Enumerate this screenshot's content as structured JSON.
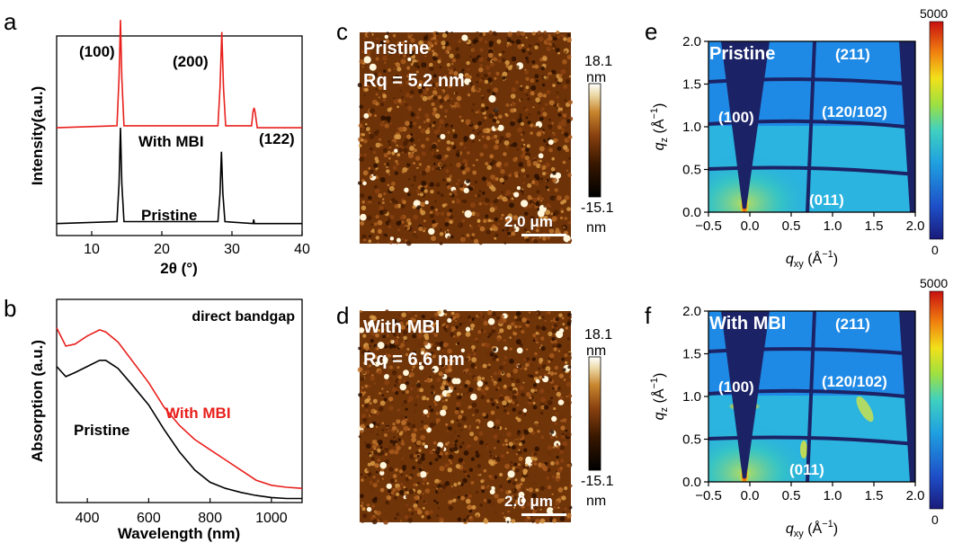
{
  "panels": {
    "a": {
      "label": "a"
    },
    "b": {
      "label": "b"
    },
    "c": {
      "label": "c"
    },
    "d": {
      "label": "d"
    },
    "e": {
      "label": "e"
    },
    "f": {
      "label": "f"
    }
  },
  "colors": {
    "with_mbi": "#e8201c",
    "pristine": "#000000",
    "afm": [
      "#1a0a00",
      "#5a2300",
      "#8b4210",
      "#c0742c",
      "#e6b45c",
      "#ffffff"
    ],
    "giwaxs": [
      "#1a1a7a",
      "#1e4fc8",
      "#1fa0e0",
      "#40d0c0",
      "#9ee040",
      "#f2e01a",
      "#f08010",
      "#c81010"
    ]
  },
  "chart_data": [
    {
      "panel": "a",
      "type": "line",
      "xlabel": "2θ (°)",
      "ylabel": "Intensity(a.u.)",
      "xlim": [
        5,
        40
      ],
      "xticks": [
        "10",
        "20",
        "30",
        "40"
      ],
      "xtick_values": [
        10,
        20,
        30,
        40
      ],
      "series": [
        {
          "name": "With MBI",
          "color": "#e8201c",
          "offset": 0.54,
          "x": [
            5,
            13.6,
            13.9,
            14.1,
            14.3,
            14.6,
            28.0,
            28.3,
            28.55,
            28.8,
            29.1,
            32.8,
            33.0,
            33.15,
            33.3,
            33.6,
            40
          ],
          "y": [
            0.0,
            0.01,
            0.25,
            0.54,
            0.25,
            0.01,
            0.01,
            0.2,
            0.48,
            0.2,
            0.01,
            0.01,
            0.08,
            0.1,
            0.08,
            0.0,
            0.0
          ]
        },
        {
          "name": "Pristine",
          "color": "#000000",
          "offset": 0.06,
          "x": [
            5,
            13.6,
            13.9,
            14.1,
            14.3,
            14.6,
            28.0,
            28.3,
            28.5,
            28.7,
            29.0,
            33.0,
            33.1,
            33.2,
            40
          ],
          "y": [
            0.0,
            0.01,
            0.2,
            0.48,
            0.2,
            0.01,
            0.01,
            0.15,
            0.36,
            0.15,
            0.01,
            0.0,
            0.02,
            0.0,
            0.0
          ]
        }
      ],
      "annotations": [
        "(100)",
        "(200)",
        "(122)",
        "With MBI",
        "Pristine"
      ]
    },
    {
      "panel": "b",
      "type": "line",
      "xlabel": "Wavelength (nm)",
      "ylabel": "Absorption (a.u.)",
      "xlim": [
        300,
        1100
      ],
      "xticks": [
        "400",
        "600",
        "800",
        "1000"
      ],
      "xtick_values": [
        400,
        600,
        800,
        1000
      ],
      "note": "direct bandgap",
      "series": [
        {
          "name": "With MBI",
          "color": "#e8201c",
          "x": [
            300,
            330,
            360,
            400,
            440,
            460,
            500,
            540,
            600,
            650,
            700,
            750,
            800,
            850,
            900,
            950,
            1000,
            1050,
            1100
          ],
          "y": [
            0.86,
            0.77,
            0.78,
            0.82,
            0.85,
            0.84,
            0.79,
            0.71,
            0.59,
            0.47,
            0.38,
            0.31,
            0.26,
            0.21,
            0.16,
            0.11,
            0.085,
            0.075,
            0.07
          ]
        },
        {
          "name": "Pristine",
          "color": "#000000",
          "x": [
            300,
            330,
            360,
            400,
            440,
            460,
            500,
            540,
            600,
            650,
            700,
            750,
            800,
            850,
            900,
            950,
            1000,
            1050,
            1100
          ],
          "y": [
            0.67,
            0.62,
            0.64,
            0.67,
            0.7,
            0.7,
            0.66,
            0.59,
            0.48,
            0.36,
            0.25,
            0.16,
            0.1,
            0.07,
            0.05,
            0.035,
            0.025,
            0.02,
            0.02
          ]
        }
      ],
      "annotations": [
        "With MBI",
        "Pristine"
      ]
    },
    {
      "panel": "c",
      "type": "heatmap",
      "sample": "Pristine",
      "roughness": "Rq = 5.2 nm",
      "scale_bar": "2.0 μm",
      "colorbar_max": "18.1",
      "colorbar_min": "-15.1",
      "unit": "nm",
      "bright_spot_fraction": 0.006
    },
    {
      "panel": "d",
      "type": "heatmap",
      "sample": "With MBI",
      "roughness": "Rq = 6.6 nm",
      "scale_bar": "2.0 μm",
      "colorbar_max": "18.1",
      "colorbar_min": "-15.1",
      "unit": "nm",
      "bright_spot_fraction": 0.012
    },
    {
      "panel": "e",
      "type": "heatmap",
      "sample": "Pristine",
      "xlabel": "q_xy (Å⁻¹)",
      "ylabel": "q_z (Å⁻¹)",
      "xlim": [
        -0.5,
        2.0
      ],
      "ylim": [
        0.0,
        2.0
      ],
      "xticks": [
        "−0.5",
        "0.0",
        "0.5",
        "1.0",
        "1.5",
        "2.0"
      ],
      "yticks": [
        "0.0",
        "0.5",
        "1.0",
        "1.5",
        "2.0"
      ],
      "colorbar_max": "5000",
      "colorbar_min": "0",
      "peaks": [
        "(100)",
        "(211)",
        "(120/102)",
        "(011)"
      ]
    },
    {
      "panel": "f",
      "type": "heatmap",
      "sample": "With MBI",
      "xlabel": "q_xy (Å⁻¹)",
      "ylabel": "q_z (Å⁻¹)",
      "xlim": [
        -0.5,
        2.0
      ],
      "ylim": [
        0.0,
        2.0
      ],
      "xticks": [
        "−0.5",
        "0.0",
        "0.5",
        "1.0",
        "1.5",
        "2.0"
      ],
      "yticks": [
        "0.0",
        "0.5",
        "1.0",
        "1.5",
        "2.0"
      ],
      "colorbar_max": "5000",
      "colorbar_min": "0",
      "peaks": [
        "(100)",
        "(211)",
        "(120/102)",
        "(011)"
      ]
    }
  ]
}
